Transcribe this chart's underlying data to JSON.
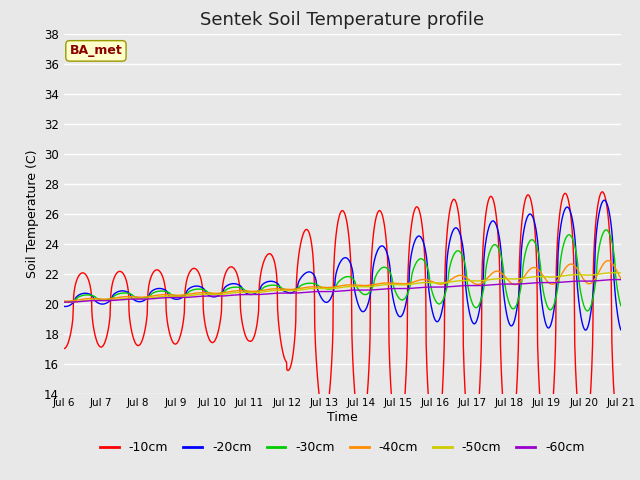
{
  "title": "Sentek Soil Temperature profile",
  "xlabel": "Time",
  "ylabel": "Soil Temperature (C)",
  "xlim": [
    0,
    15
  ],
  "ylim": [
    14,
    38
  ],
  "yticks": [
    14,
    16,
    18,
    20,
    22,
    24,
    26,
    28,
    30,
    32,
    34,
    36,
    38
  ],
  "xtick_labels": [
    "Jul 6",
    "Jul 7",
    "Jul 8",
    "Jul 9",
    "Jul 10",
    "Jul 11",
    "Jul 12",
    "Jul 13",
    "Jul 14",
    "Jul 15",
    "Jul 16",
    "Jul 17",
    "Jul 18",
    "Jul 19",
    "Jul 20",
    "Jul 21"
  ],
  "annotation_text": "BA_met",
  "annotation_color": "#8B0000",
  "annotation_bg": "#FFFFCC",
  "annotation_edge": "#999900",
  "bg_color": "#E8E8E8",
  "plot_bg": "#E8E8E8",
  "grid_color": "#FFFFFF",
  "series_colors": [
    "#FF0000",
    "#0000FF",
    "#00CC00",
    "#FF8C00",
    "#CCCC00",
    "#9900CC"
  ],
  "series_labels": [
    "-10cm",
    "-20cm",
    "-30cm",
    "-40cm",
    "-50cm",
    "-60cm"
  ],
  "linewidth": 1.0,
  "title_fontsize": 13
}
